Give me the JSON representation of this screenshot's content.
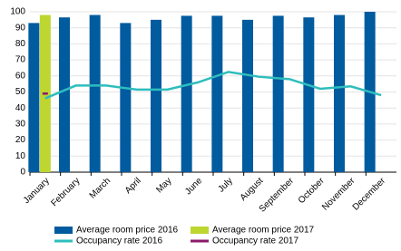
{
  "chart_data": {
    "type": "bar",
    "categories": [
      "January",
      "February",
      "March",
      "April",
      "May",
      "June",
      "July",
      "August",
      "September",
      "October",
      "November",
      "December"
    ],
    "series": [
      {
        "name": "Average room price 2016",
        "type": "bar",
        "color": "#005b9f",
        "values": [
          93,
          96.5,
          98,
          93,
          95,
          97.5,
          97.5,
          95,
          97.5,
          96.5,
          98,
          100
        ]
      },
      {
        "name": "Average room price 2017",
        "type": "bar",
        "color": "#bed630",
        "values": [
          98,
          null,
          null,
          null,
          null,
          null,
          null,
          null,
          null,
          null,
          null,
          null
        ]
      },
      {
        "name": "Occupancy rate 2016",
        "type": "line",
        "color": "#2ebdbd",
        "values": [
          46,
          54,
          54,
          51.5,
          51.5,
          56,
          62.5,
          59.5,
          58,
          52,
          53.5,
          48
        ]
      },
      {
        "name": "Occupancy rate 2017",
        "type": "line",
        "color": "#8b1a6b",
        "values": [
          49,
          null,
          null,
          null,
          null,
          null,
          null,
          null,
          null,
          null,
          null,
          null
        ]
      }
    ],
    "ylim": [
      0,
      100
    ],
    "yticks": [
      0,
      10,
      20,
      30,
      40,
      50,
      60,
      70,
      80,
      90,
      100
    ],
    "grid": true,
    "legend": "bottom"
  }
}
